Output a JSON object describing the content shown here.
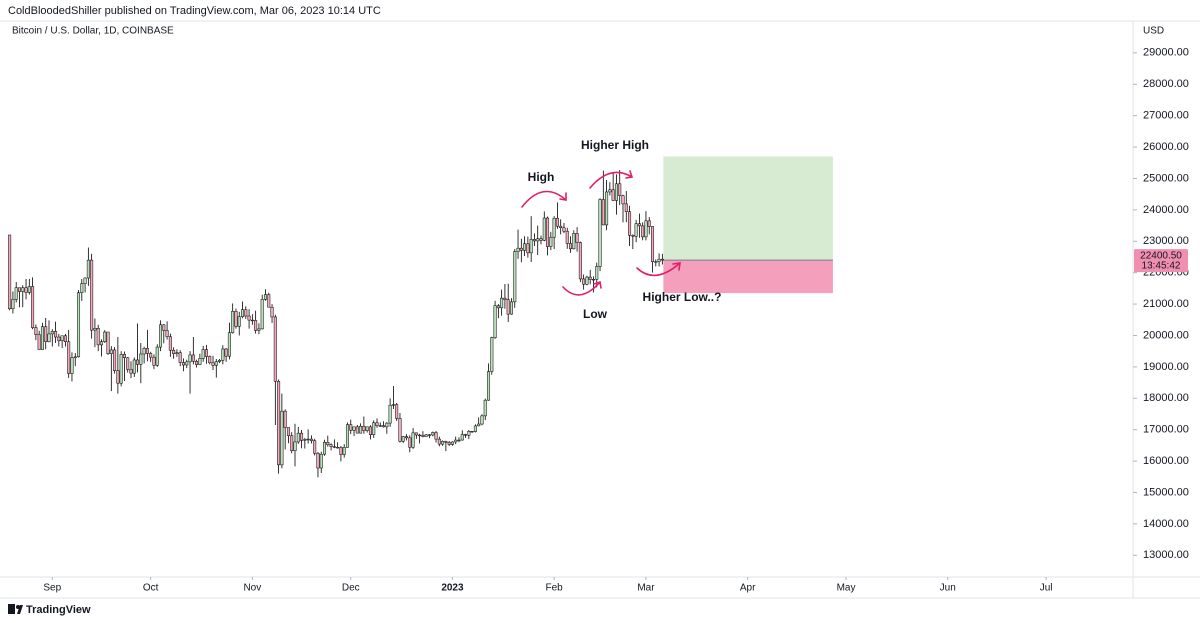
{
  "header": {
    "published": "ColdBloodedShiller published on TradingView.com, Mar 06, 2023 10:14 UTC",
    "footer": "TradingView"
  },
  "chart_data": {
    "type": "candlestick",
    "title": "Bitcoin / U.S. Dollar, 1D, COINBASE",
    "currency": "USD",
    "up_color": "#b9e0bb",
    "down_color": "#f3a9bc",
    "wick_color": "#000000",
    "grid": false,
    "ylim": [
      12500,
      29600
    ],
    "yticks": [
      {
        "value": 13000,
        "label": "13000.00"
      },
      {
        "value": 14000,
        "label": "14000.00"
      },
      {
        "value": 15000,
        "label": "15000.00"
      },
      {
        "value": 16000,
        "label": "16000.00"
      },
      {
        "value": 17000,
        "label": "17000.00"
      },
      {
        "value": 18000,
        "label": "18000.00"
      },
      {
        "value": 19000,
        "label": "19000.00"
      },
      {
        "value": 20000,
        "label": "20000.00"
      },
      {
        "value": 21000,
        "label": "21000.00"
      },
      {
        "value": 22000,
        "label": "22000.00"
      },
      {
        "value": 23000,
        "label": "23000.00"
      },
      {
        "value": 24000,
        "label": "24000.00"
      },
      {
        "value": 25000,
        "label": "25000.00"
      },
      {
        "value": 26000,
        "label": "26000.00"
      },
      {
        "value": 27000,
        "label": "27000.00"
      },
      {
        "value": 28000,
        "label": "28000.00"
      },
      {
        "value": 29000,
        "label": "29000.00"
      }
    ],
    "xticks": [
      {
        "value": 13,
        "label": "Sep"
      },
      {
        "value": 43,
        "label": "Oct"
      },
      {
        "value": 74,
        "label": "Nov"
      },
      {
        "value": 104,
        "label": "Dec"
      },
      {
        "value": 135,
        "label": "2023"
      },
      {
        "value": 166,
        "label": "Feb"
      },
      {
        "value": 194,
        "label": "Mar"
      },
      {
        "value": 225,
        "label": "Apr"
      },
      {
        "value": 255,
        "label": "May"
      },
      {
        "value": 286,
        "label": "Jun"
      },
      {
        "value": 316,
        "label": "Jul"
      }
    ],
    "ohlc": [
      [
        23200,
        23200,
        20800,
        20850
      ],
      [
        20850,
        21400,
        20700,
        21150
      ],
      [
        21150,
        21700,
        21050,
        21520
      ],
      [
        21520,
        21520,
        20900,
        21400
      ],
      [
        21400,
        21600,
        20900,
        21520
      ],
      [
        21520,
        21800,
        21150,
        21370
      ],
      [
        21370,
        21800,
        21300,
        21560
      ],
      [
        21560,
        21850,
        20200,
        20250
      ],
      [
        20250,
        20350,
        19850,
        20030
      ],
      [
        20030,
        20150,
        19600,
        19550
      ],
      [
        19550,
        20400,
        19550,
        20280
      ],
      [
        20280,
        20560,
        19560,
        19800
      ],
      [
        19800,
        20480,
        19780,
        20050
      ],
      [
        20050,
        20200,
        19650,
        20130
      ],
      [
        20130,
        20440,
        19760,
        19950
      ],
      [
        19950,
        20050,
        19650,
        19830
      ],
      [
        19830,
        20000,
        19600,
        19990
      ],
      [
        19990,
        20050,
        19650,
        19800
      ],
      [
        19800,
        20180,
        18650,
        18790
      ],
      [
        18790,
        19460,
        18540,
        19290
      ],
      [
        19290,
        19440,
        19020,
        19320
      ],
      [
        19320,
        21450,
        19300,
        21360
      ],
      [
        21360,
        21800,
        21100,
        21650
      ],
      [
        21650,
        21850,
        21370,
        21830
      ],
      [
        21830,
        22800,
        21580,
        22400
      ],
      [
        22400,
        22600,
        19900,
        20170
      ],
      [
        20170,
        20540,
        19630,
        20230
      ],
      [
        20230,
        20340,
        19500,
        19700
      ],
      [
        19700,
        19880,
        19330,
        19800
      ],
      [
        19800,
        20170,
        19760,
        20110
      ],
      [
        20110,
        20110,
        19380,
        19420
      ],
      [
        19420,
        19660,
        18230,
        19540
      ],
      [
        19540,
        19630,
        18790,
        18880
      ],
      [
        18880,
        19950,
        18150,
        18480
      ],
      [
        18480,
        19500,
        18380,
        19400
      ],
      [
        19400,
        19490,
        18550,
        19290
      ],
      [
        19290,
        19310,
        18820,
        18920
      ],
      [
        18920,
        19180,
        18640,
        18800
      ],
      [
        18800,
        19300,
        18680,
        19220
      ],
      [
        19220,
        20380,
        18820,
        19080
      ],
      [
        19080,
        19760,
        18480,
        19410
      ],
      [
        19410,
        19640,
        19110,
        19590
      ],
      [
        19590,
        20180,
        19180,
        19430
      ],
      [
        19430,
        19480,
        19160,
        19310
      ],
      [
        19310,
        19400,
        18930,
        19050
      ],
      [
        19050,
        19720,
        19000,
        19630
      ],
      [
        19630,
        20480,
        19500,
        20340
      ],
      [
        20340,
        20360,
        19750,
        20160
      ],
      [
        20160,
        20450,
        19870,
        19960
      ],
      [
        19960,
        20060,
        19320,
        19530
      ],
      [
        19530,
        19620,
        19260,
        19420
      ],
      [
        19420,
        19560,
        19320,
        19450
      ],
      [
        19450,
        19530,
        19020,
        19140
      ],
      [
        19140,
        19270,
        18860,
        19060
      ],
      [
        19060,
        19230,
        18960,
        19160
      ],
      [
        19160,
        19500,
        18150,
        19380
      ],
      [
        19380,
        19950,
        19080,
        19180
      ],
      [
        19180,
        19230,
        18980,
        19070
      ],
      [
        19070,
        19420,
        19060,
        19270
      ],
      [
        19270,
        19670,
        19160,
        19550
      ],
      [
        19550,
        19700,
        19100,
        19330
      ],
      [
        19330,
        19360,
        19080,
        19130
      ],
      [
        19130,
        19350,
        18900,
        19050
      ],
      [
        19050,
        19250,
        18660,
        19170
      ],
      [
        19170,
        19250,
        19120,
        19210
      ],
      [
        19210,
        19690,
        19080,
        19570
      ],
      [
        19570,
        19600,
        19160,
        19340
      ],
      [
        19340,
        20410,
        19240,
        20090
      ],
      [
        20090,
        21020,
        20060,
        20770
      ],
      [
        20770,
        20860,
        20220,
        20290
      ],
      [
        20290,
        20750,
        20000,
        20600
      ],
      [
        20600,
        21080,
        20550,
        20820
      ],
      [
        20820,
        20930,
        20530,
        20620
      ],
      [
        20620,
        20840,
        20220,
        20490
      ],
      [
        20490,
        20680,
        20340,
        20480
      ],
      [
        20480,
        20790,
        20060,
        20160
      ],
      [
        20160,
        20390,
        20040,
        20210
      ],
      [
        20210,
        21300,
        20190,
        21150
      ],
      [
        21150,
        21470,
        21100,
        21300
      ],
      [
        21300,
        21360,
        20900,
        20900
      ],
      [
        20900,
        21000,
        20400,
        20590
      ],
      [
        20590,
        20660,
        17150,
        18540
      ],
      [
        18540,
        18600,
        15600,
        15880
      ],
      [
        15880,
        18150,
        15770,
        17590
      ],
      [
        17590,
        17650,
        16370,
        17070
      ],
      [
        17070,
        17070,
        16570,
        16810
      ],
      [
        16810,
        16920,
        16250,
        16330
      ],
      [
        16330,
        17190,
        15830,
        16610
      ],
      [
        16610,
        17090,
        16550,
        16890
      ],
      [
        16890,
        16990,
        16410,
        16660
      ],
      [
        16660,
        16740,
        16400,
        16690
      ],
      [
        16690,
        17010,
        16560,
        16700
      ],
      [
        16700,
        16820,
        16560,
        16650
      ],
      [
        16650,
        16710,
        16180,
        16250
      ],
      [
        16250,
        16290,
        15480,
        15780
      ],
      [
        15780,
        16300,
        15620,
        16220
      ],
      [
        16220,
        16680,
        16170,
        16600
      ],
      [
        16600,
        16810,
        16460,
        16520
      ],
      [
        16520,
        16570,
        16340,
        16460
      ],
      [
        16460,
        16690,
        16410,
        16440
      ],
      [
        16440,
        16600,
        16400,
        16430
      ],
      [
        16430,
        16480,
        15990,
        16210
      ],
      [
        16210,
        16540,
        16110,
        16440
      ],
      [
        16440,
        17230,
        16430,
        17160
      ],
      [
        17160,
        17320,
        16860,
        16980
      ],
      [
        16980,
        17100,
        16800,
        17090
      ],
      [
        17090,
        17150,
        16880,
        16890
      ],
      [
        16890,
        17200,
        16880,
        17110
      ],
      [
        17110,
        17420,
        16870,
        16970
      ],
      [
        16970,
        17100,
        16910,
        17090
      ],
      [
        17090,
        17140,
        16690,
        16840
      ],
      [
        16840,
        17300,
        16740,
        17220
      ],
      [
        17220,
        17360,
        17060,
        17130
      ],
      [
        17130,
        17230,
        17090,
        17130
      ],
      [
        17130,
        17270,
        17070,
        17090
      ],
      [
        17090,
        17240,
        16870,
        17210
      ],
      [
        17210,
        18000,
        17090,
        17780
      ],
      [
        17780,
        18390,
        17660,
        17800
      ],
      [
        17800,
        17850,
        17280,
        17360
      ],
      [
        17360,
        17530,
        16590,
        16630
      ],
      [
        16630,
        16800,
        16580,
        16780
      ],
      [
        16780,
        16860,
        16660,
        16740
      ],
      [
        16740,
        16820,
        16280,
        16440
      ],
      [
        16440,
        17050,
        16390,
        16900
      ],
      [
        16900,
        16900,
        16710,
        16830
      ],
      [
        16830,
        16870,
        16560,
        16820
      ],
      [
        16820,
        16950,
        16760,
        16780
      ],
      [
        16780,
        16860,
        16780,
        16840
      ],
      [
        16840,
        16860,
        16730,
        16830
      ],
      [
        16830,
        16940,
        16790,
        16910
      ],
      [
        16910,
        16960,
        16590,
        16700
      ],
      [
        16700,
        16780,
        16470,
        16540
      ],
      [
        16540,
        16660,
        16490,
        16630
      ],
      [
        16630,
        16650,
        16320,
        16600
      ],
      [
        16600,
        16640,
        16480,
        16530
      ],
      [
        16530,
        16630,
        16490,
        16610
      ],
      [
        16610,
        16780,
        16540,
        16670
      ],
      [
        16670,
        16760,
        16600,
        16670
      ],
      [
        16670,
        16980,
        16650,
        16850
      ],
      [
        16850,
        16870,
        16740,
        16820
      ],
      [
        16820,
        16990,
        16700,
        16950
      ],
      [
        16950,
        16960,
        16900,
        16940
      ],
      [
        16940,
        17170,
        16910,
        17120
      ],
      [
        17120,
        17390,
        17110,
        17180
      ],
      [
        17180,
        17490,
        17140,
        17440
      ],
      [
        17440,
        17990,
        17310,
        17940
      ],
      [
        17940,
        19110,
        17920,
        18850
      ],
      [
        18850,
        19960,
        18750,
        19930
      ],
      [
        19930,
        21100,
        19890,
        20950
      ],
      [
        20950,
        21000,
        20550,
        20880
      ],
      [
        20880,
        21460,
        20630,
        21190
      ],
      [
        21190,
        21640,
        20850,
        21140
      ],
      [
        21140,
        21650,
        20430,
        20680
      ],
      [
        20680,
        21190,
        20660,
        21070
      ],
      [
        21070,
        22750,
        20880,
        22670
      ],
      [
        22670,
        23370,
        22440,
        22780
      ],
      [
        22780,
        23080,
        22330,
        22710
      ],
      [
        22710,
        23160,
        22530,
        22920
      ],
      [
        22920,
        23150,
        22480,
        22630
      ],
      [
        22630,
        23800,
        22340,
        23060
      ],
      [
        23060,
        23250,
        22850,
        23010
      ],
      [
        23010,
        23500,
        22560,
        23080
      ],
      [
        23080,
        23180,
        22900,
        23030
      ],
      [
        23030,
        23950,
        23000,
        23740
      ],
      [
        23740,
        23790,
        22550,
        22830
      ],
      [
        22830,
        23300,
        22720,
        23130
      ],
      [
        23130,
        23800,
        22750,
        23730
      ],
      [
        23730,
        24240,
        23400,
        23480
      ],
      [
        23480,
        23700,
        23220,
        23430
      ],
      [
        23430,
        23580,
        23260,
        23320
      ],
      [
        23320,
        23430,
        22760,
        22930
      ],
      [
        22930,
        23160,
        22630,
        22760
      ],
      [
        22760,
        23350,
        22740,
        23250
      ],
      [
        23250,
        23450,
        22670,
        22960
      ],
      [
        22960,
        22990,
        21700,
        21800
      ],
      [
        21800,
        21940,
        21460,
        21630
      ],
      [
        21630,
        21900,
        21600,
        21860
      ],
      [
        21860,
        22090,
        21630,
        21780
      ],
      [
        21780,
        21880,
        21370,
        21790
      ],
      [
        21790,
        22320,
        21530,
        22200
      ],
      [
        22200,
        24370,
        22050,
        24330
      ],
      [
        24330,
        25250,
        23510,
        23520
      ],
      [
        23520,
        24950,
        23350,
        24570
      ],
      [
        24570,
        24880,
        24460,
        24640
      ],
      [
        24640,
        25200,
        24280,
        24300
      ],
      [
        24300,
        25130,
        23850,
        24830
      ],
      [
        24830,
        25270,
        24150,
        24450
      ],
      [
        24450,
        24480,
        23600,
        24190
      ],
      [
        24190,
        24600,
        23610,
        23940
      ],
      [
        23940,
        24130,
        22850,
        23190
      ],
      [
        23190,
        23220,
        22750,
        23160
      ],
      [
        23160,
        23680,
        22970,
        23560
      ],
      [
        23560,
        23880,
        23110,
        23490
      ],
      [
        23490,
        23600,
        23030,
        23140
      ],
      [
        23140,
        23960,
        23030,
        23650
      ],
      [
        23650,
        23770,
        23220,
        23470
      ],
      [
        23470,
        23480,
        22000,
        22350
      ],
      [
        22350,
        22420,
        22200,
        22350
      ],
      [
        22350,
        22620,
        22200,
        22430
      ],
      [
        22430,
        22600,
        22260,
        22400.5
      ]
    ],
    "last_price": {
      "value": 22400.5,
      "label": "22400.50"
    },
    "countdown": "13:45:42",
    "position": {
      "entry": 22400.5,
      "target": 25700,
      "stop": 21350
    },
    "annotations": [
      "High",
      "Higher High",
      "Low",
      "Higher Low..?"
    ]
  }
}
